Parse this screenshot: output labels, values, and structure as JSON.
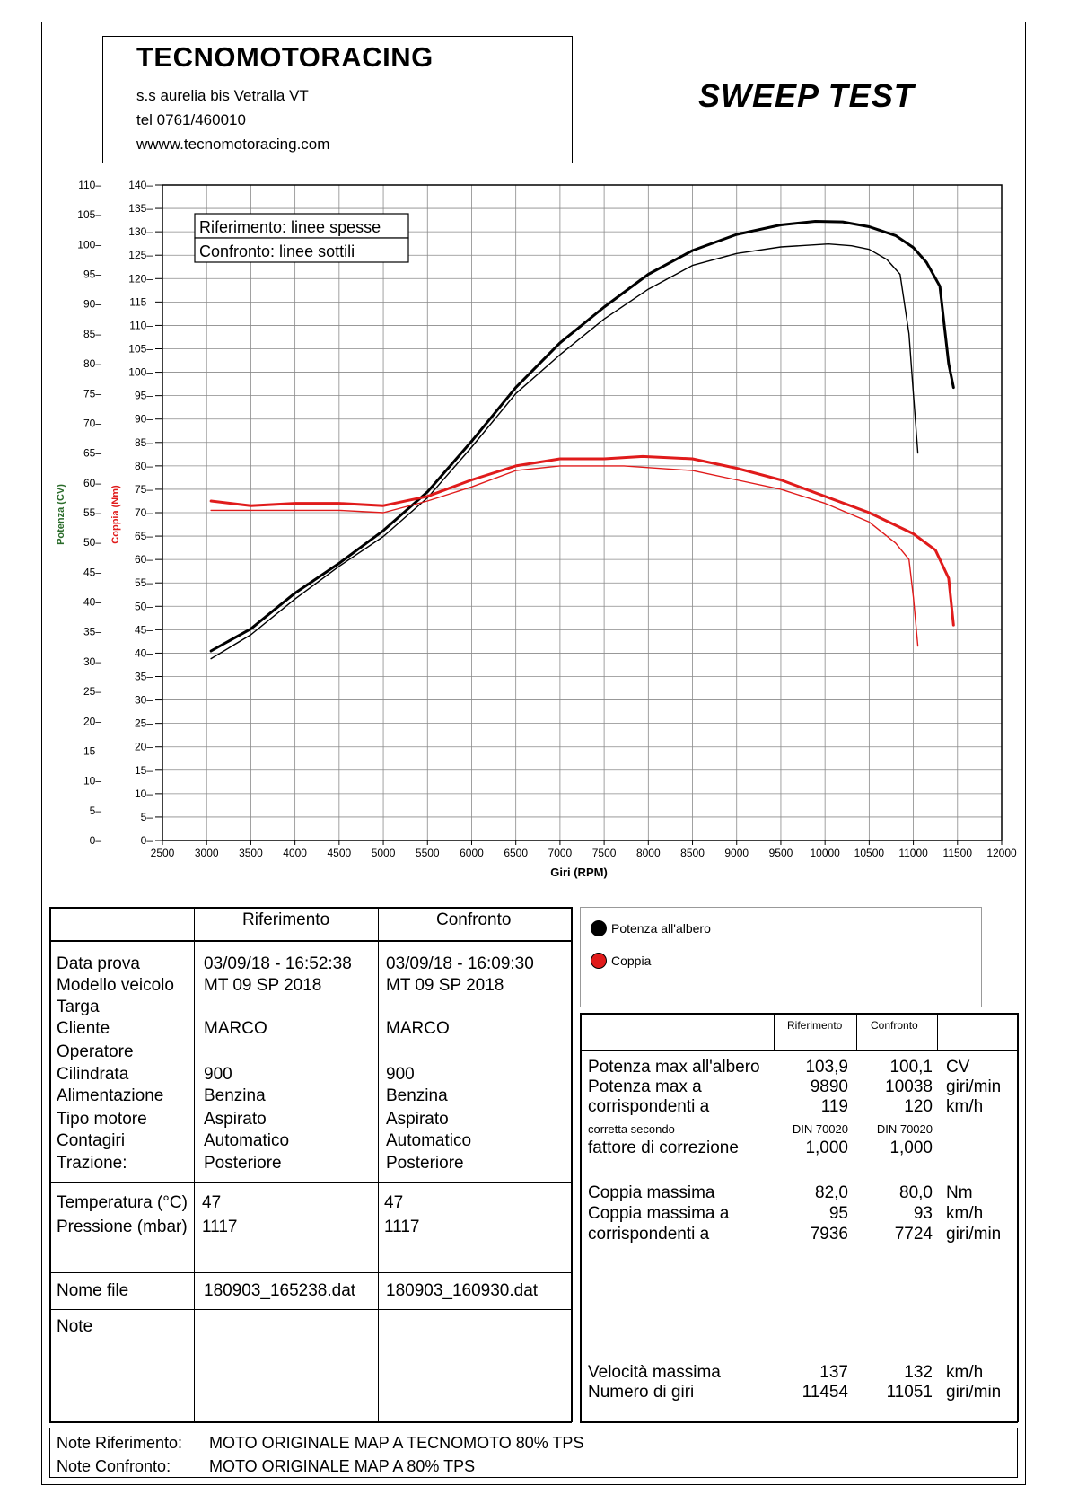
{
  "header": {
    "company": "TECNOMOTORACING",
    "address": "s.s aurelia bis  Vetralla  VT",
    "phone": "tel 0761/460010",
    "web": "wwww.tecnomotoracing.com",
    "test_title": "SWEEP TEST"
  },
  "chart_data": {
    "type": "line",
    "xlabel": "Giri (RPM)",
    "ylabel_left": "Potenza (CV)",
    "ylabel_right": "Coppia (Nm)",
    "xlim": [
      2500,
      12000
    ],
    "x_ticks": [
      "2500",
      "3000",
      "3500",
      "4000",
      "4500",
      "5000",
      "5500",
      "6000",
      "6500",
      "7000",
      "7500",
      "8000",
      "8500",
      "9000",
      "9500",
      "10000",
      "10500",
      "11000",
      "11500",
      "12000"
    ],
    "power_ylim": [
      0,
      110
    ],
    "power_ticks": [
      "0",
      "5",
      "10",
      "15",
      "20",
      "25",
      "30",
      "35",
      "40",
      "45",
      "50",
      "55",
      "60",
      "65",
      "70",
      "75",
      "80",
      "85",
      "90",
      "95",
      "100",
      "105",
      "110"
    ],
    "torque_ylim": [
      0,
      140
    ],
    "torque_ticks": [
      "0",
      "5",
      "10",
      "15",
      "20",
      "25",
      "30",
      "35",
      "40",
      "45",
      "50",
      "55",
      "60",
      "65",
      "70",
      "75",
      "80",
      "85",
      "90",
      "95",
      "100",
      "105",
      "110",
      "115",
      "120",
      "125",
      "130",
      "135",
      "140"
    ],
    "grid": true,
    "legend_box": [
      "Riferimento: linee spesse",
      "Confronto: linee sottili"
    ],
    "series": [
      {
        "name": "Potenza all'albero",
        "style": "thick",
        "color": "#000000",
        "x": [
          3050,
          3500,
          4000,
          4500,
          5000,
          5500,
          6000,
          6500,
          7000,
          7500,
          8000,
          8500,
          9000,
          9500,
          9890,
          10200,
          10500,
          10800,
          11000,
          11150,
          11300,
          11400,
          11454
        ],
        "y": [
          31.8,
          35.5,
          41.5,
          46.5,
          52,
          58.5,
          67,
          76,
          83.5,
          89.5,
          95,
          99,
          101.7,
          103.3,
          103.9,
          103.8,
          103,
          101.5,
          99.5,
          97,
          93,
          80,
          76
        ]
      },
      {
        "name": "Potenza all'albero",
        "style": "thin",
        "color": "#000000",
        "x": [
          3050,
          3500,
          4000,
          4500,
          5000,
          5500,
          6000,
          6500,
          7000,
          7500,
          8000,
          8500,
          9000,
          9500,
          10038,
          10300,
          10500,
          10700,
          10850,
          10950,
          11000,
          11051
        ],
        "y": [
          30.5,
          34.5,
          40.5,
          46,
          51,
          57.5,
          66,
          75,
          81.5,
          87.5,
          92.5,
          96.5,
          98.5,
          99.6,
          100.1,
          99.8,
          99.2,
          97.5,
          95,
          85,
          75,
          65
        ]
      },
      {
        "name": "Coppia",
        "style": "thick",
        "color": "#e01b1b",
        "x": [
          3050,
          3500,
          4000,
          4500,
          5000,
          5500,
          6000,
          6500,
          7000,
          7500,
          7936,
          8500,
          9000,
          9500,
          10000,
          10500,
          11000,
          11250,
          11400,
          11454
        ],
        "y": [
          72.5,
          71.5,
          72,
          72,
          71.5,
          73.5,
          77,
          80,
          81.5,
          81.5,
          82,
          81.5,
          79.5,
          77,
          73.5,
          70,
          65.5,
          62,
          56,
          46
        ]
      },
      {
        "name": "Coppia",
        "style": "thin",
        "color": "#e01b1b",
        "x": [
          3050,
          3500,
          4000,
          4500,
          5000,
          5500,
          6000,
          6500,
          7000,
          7500,
          7724,
          8500,
          9000,
          9500,
          10000,
          10500,
          10800,
          10950,
          11000,
          11051
        ],
        "y": [
          70.5,
          70.5,
          70.5,
          70.5,
          70,
          72.5,
          75.5,
          79,
          80,
          80,
          80,
          79,
          77,
          75,
          72,
          68,
          63.5,
          60,
          52,
          41.5
        ]
      }
    ]
  },
  "left_table": {
    "col_ref": "Riferimento",
    "col_conf": "Confronto",
    "labels": [
      "Data prova",
      "Modello veicolo",
      "Targa",
      "Cliente",
      "Operatore",
      "Cilindrata",
      "Alimentazione",
      "Tipo motore",
      "Contagiri",
      "Trazione:"
    ],
    "ref": [
      "03/09/18 - 16:52:38",
      "MT 09 SP 2018",
      "",
      "MARCO",
      "",
      "900",
      "Benzina",
      "Aspirato",
      "Automatico",
      "Posteriore"
    ],
    "conf": [
      "03/09/18 - 16:09:30",
      "MT 09 SP 2018",
      "",
      "MARCO",
      "",
      "900",
      "Benzina",
      "Aspirato",
      "Automatico",
      "Posteriore"
    ],
    "env_labels": [
      "Temperatura (°C)",
      "Pressione (mbar)"
    ],
    "env_ref": [
      "47",
      "1117"
    ],
    "env_conf": [
      "47",
      "1117"
    ],
    "file_label": "Nome file",
    "file_ref": "180903_165238.dat",
    "file_conf": "180903_160930.dat",
    "note_label": "Note"
  },
  "legend": {
    "power": "Potenza all'albero",
    "torque": "Coppia"
  },
  "right_table": {
    "col_ref": "Riferimento",
    "col_conf": "Confronto",
    "rows": [
      {
        "label": "Potenza max all'albero",
        "ref": "103,9",
        "conf": "100,1",
        "unit": "CV"
      },
      {
        "label": "Potenza max a",
        "ref": "9890",
        "conf": "10038",
        "unit": "giri/min"
      },
      {
        "label": "corrispondenti a",
        "ref": "119",
        "conf": "120",
        "unit": "km/h"
      },
      {
        "label": "corretta secondo",
        "ref": "DIN 70020",
        "conf": "DIN 70020",
        "unit": "",
        "small": true
      },
      {
        "label": "fattore di correzione",
        "ref": "1,000",
        "conf": "1,000",
        "unit": ""
      },
      {
        "label": "Coppia massima",
        "ref": "82,0",
        "conf": "80,0",
        "unit": "Nm"
      },
      {
        "label": "Coppia massima a",
        "ref": "95",
        "conf": "93",
        "unit": "km/h"
      },
      {
        "label": "corrispondenti a",
        "ref": "7936",
        "conf": "7724",
        "unit": "giri/min"
      },
      {
        "label": "Velocità massima",
        "ref": "137",
        "conf": "132",
        "unit": "km/h"
      },
      {
        "label": "Numero di giri",
        "ref": "11454",
        "conf": "11051",
        "unit": "giri/min"
      }
    ]
  },
  "notes": {
    "ref_label": "Note Riferimento:",
    "ref_text": "MOTO ORIGINALE MAP A TECNOMOTO   80% TPS",
    "conf_label": "Note Confronto:",
    "conf_text": "MOTO ORIGINALE MAP A 80% TPS"
  }
}
